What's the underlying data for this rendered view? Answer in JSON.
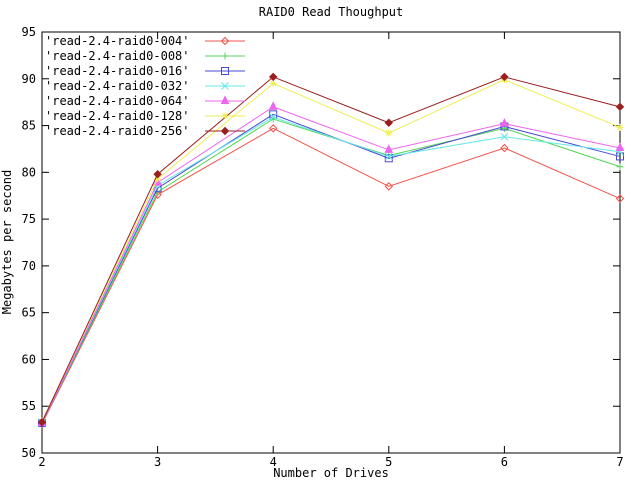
{
  "window": {
    "background": "#ffffff",
    "axis_color": "#000000"
  },
  "chart_data": {
    "type": "line",
    "title": "RAID0 Read Thoughput",
    "xlabel": "Number of Drives",
    "ylabel": "Megabytes per second",
    "x": [
      2,
      3,
      4,
      5,
      6,
      7
    ],
    "xlim": [
      2,
      7
    ],
    "ylim": [
      50,
      95
    ],
    "xticks": [
      2,
      3,
      4,
      5,
      6,
      7
    ],
    "yticks": [
      50,
      55,
      60,
      65,
      70,
      75,
      80,
      85,
      90,
      95
    ],
    "grid": false,
    "legend_position": "top-left-inside",
    "series": [
      {
        "name": "'read-2.4-raid0-004'",
        "color": "#f0544c",
        "marker": "diamond-open",
        "values": [
          53.1,
          77.6,
          84.7,
          78.5,
          82.6,
          77.2
        ]
      },
      {
        "name": "'read-2.4-raid0-008'",
        "color": "#54d654",
        "marker": "plus",
        "values": [
          53.2,
          77.9,
          85.7,
          81.8,
          84.7,
          80.6
        ]
      },
      {
        "name": "'read-2.4-raid0-016'",
        "color": "#4848d0",
        "marker": "square-open",
        "values": [
          53.2,
          78.3,
          86.2,
          81.5,
          84.9,
          81.7
        ]
      },
      {
        "name": "'read-2.4-raid0-032'",
        "color": "#66e8e8",
        "marker": "x",
        "values": [
          53.2,
          78.6,
          85.9,
          81.7,
          83.8,
          82.2
        ]
      },
      {
        "name": "'read-2.4-raid0-064'",
        "color": "#ee66ee",
        "marker": "triangle-filled",
        "values": [
          53.2,
          78.9,
          87.0,
          82.4,
          85.2,
          82.6
        ]
      },
      {
        "name": "'read-2.4-raid0-128'",
        "color": "#eeee55",
        "marker": "star",
        "values": [
          53.4,
          79.3,
          89.5,
          84.2,
          89.9,
          84.8
        ]
      },
      {
        "name": "'read-2.4-raid0-256'",
        "color": "#9b1f1f",
        "marker": "diamond-filled",
        "values": [
          53.3,
          79.8,
          90.2,
          85.3,
          90.2,
          87.0
        ]
      }
    ]
  }
}
